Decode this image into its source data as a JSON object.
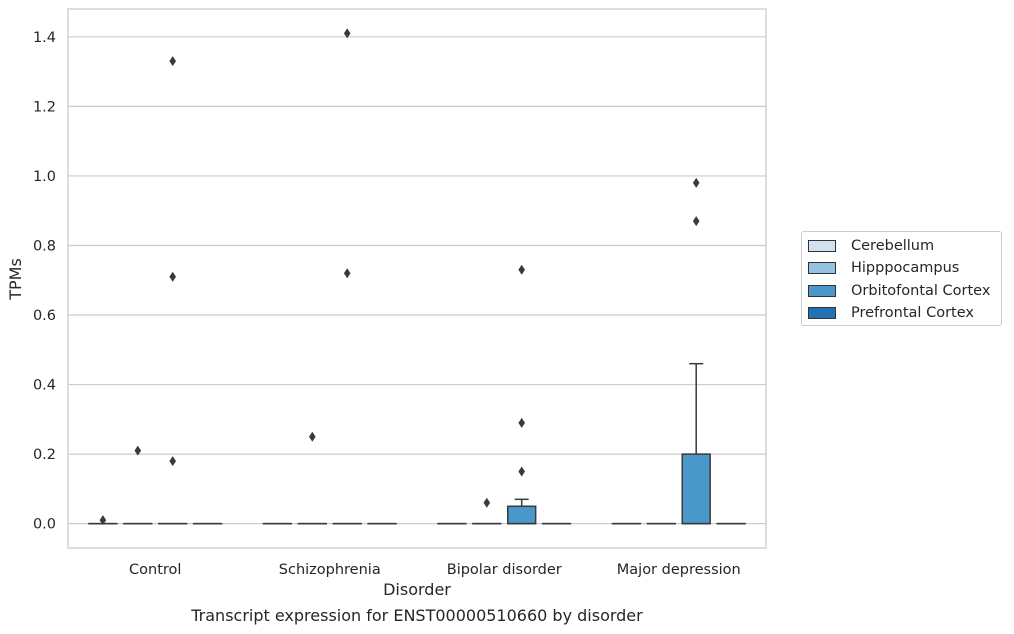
{
  "chart_data": {
    "type": "box",
    "caption": "Transcript expression for ENST00000510660 by disorder",
    "xlabel": "Disorder",
    "ylabel": "TPMs",
    "ylim": [
      -0.07,
      1.48
    ],
    "yticks": [
      "0.0",
      "0.2",
      "0.4",
      "0.6",
      "0.8",
      "1.0",
      "1.2",
      "1.4"
    ],
    "categories": [
      "Control",
      "Schizophrenia",
      "Bipolar disorder",
      "Major depression"
    ],
    "grid": "horizontal",
    "legend_position": "right",
    "series": [
      {
        "name": "Cerebellum",
        "color": "#d0e1f2",
        "boxes": [
          {
            "q1": 0,
            "median": 0,
            "q3": 0,
            "whislo": 0,
            "whishi": 0,
            "fliers": [
              0.01
            ]
          },
          {
            "q1": 0,
            "median": 0,
            "q3": 0,
            "whislo": 0,
            "whishi": 0,
            "fliers": []
          },
          {
            "q1": 0,
            "median": 0,
            "q3": 0,
            "whislo": 0,
            "whishi": 0,
            "fliers": []
          },
          {
            "q1": 0,
            "median": 0,
            "q3": 0,
            "whislo": 0,
            "whishi": 0,
            "fliers": []
          }
        ]
      },
      {
        "name": "Hipppocampus",
        "color": "#94c4df",
        "boxes": [
          {
            "q1": 0,
            "median": 0,
            "q3": 0,
            "whislo": 0,
            "whishi": 0,
            "fliers": [
              0.21
            ]
          },
          {
            "q1": 0,
            "median": 0,
            "q3": 0,
            "whislo": 0,
            "whishi": 0,
            "fliers": [
              0.25
            ]
          },
          {
            "q1": 0,
            "median": 0,
            "q3": 0,
            "whislo": 0,
            "whishi": 0,
            "fliers": [
              0.06
            ]
          },
          {
            "q1": 0,
            "median": 0,
            "q3": 0,
            "whislo": 0,
            "whishi": 0,
            "fliers": []
          }
        ]
      },
      {
        "name": "Orbitofontal Cortex",
        "color": "#4a98c9",
        "boxes": [
          {
            "q1": 0,
            "median": 0,
            "q3": 0,
            "whislo": 0,
            "whishi": 0,
            "fliers": [
              1.33,
              0.71,
              0.18
            ]
          },
          {
            "q1": 0,
            "median": 0,
            "q3": 0,
            "whislo": 0,
            "whishi": 0,
            "fliers": [
              1.41,
              0.72
            ]
          },
          {
            "q1": 0,
            "median": 0,
            "q3": 0.05,
            "whislo": 0,
            "whishi": 0.07,
            "fliers": [
              0.73,
              0.29,
              0.15
            ]
          },
          {
            "q1": 0,
            "median": 0,
            "q3": 0.2,
            "whislo": 0,
            "whishi": 0.46,
            "fliers": [
              0.98,
              0.87
            ]
          }
        ]
      },
      {
        "name": "Prefrontal Cortex",
        "color": "#2171b5",
        "boxes": [
          {
            "q1": 0,
            "median": 0,
            "q3": 0,
            "whislo": 0,
            "whishi": 0,
            "fliers": []
          },
          {
            "q1": 0,
            "median": 0,
            "q3": 0,
            "whislo": 0,
            "whishi": 0,
            "fliers": []
          },
          {
            "q1": 0,
            "median": 0,
            "q3": 0,
            "whislo": 0,
            "whishi": 0,
            "fliers": []
          },
          {
            "q1": 0,
            "median": 0,
            "q3": 0,
            "whislo": 0,
            "whishi": 0,
            "fliers": []
          }
        ]
      }
    ]
  }
}
